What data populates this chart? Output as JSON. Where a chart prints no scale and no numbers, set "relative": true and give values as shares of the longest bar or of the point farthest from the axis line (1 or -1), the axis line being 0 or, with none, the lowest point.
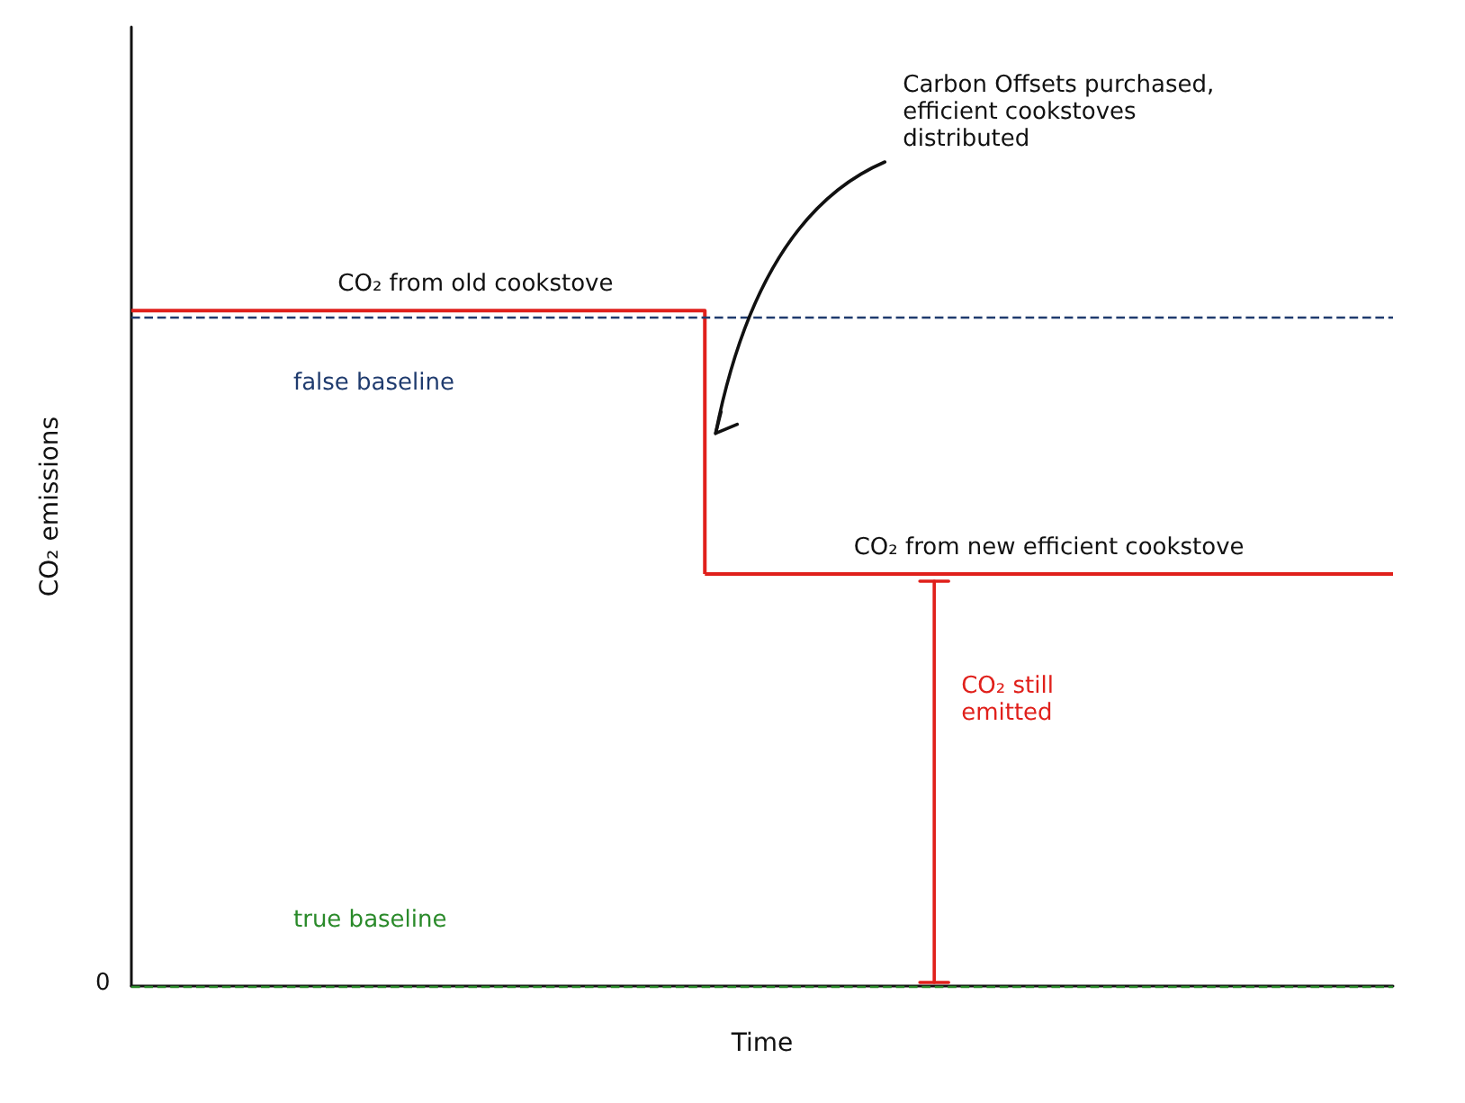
{
  "chart_data": {
    "type": "step",
    "relative": true,
    "xlabel": "Time",
    "ylabel": "CO₂ emissions",
    "categories": [
      null,
      null,
      null,
      null,
      null,
      null,
      null,
      null,
      null,
      null,
      null,
      null
    ],
    "series": [
      {
        "name": "CO₂ from old cookstove",
        "color": "#e0201b",
        "values": [
          1,
          1,
          1,
          1,
          1,
          0.61,
          null,
          null,
          null,
          null,
          null,
          null
        ]
      },
      {
        "name": "CO₂ from new efficient cookstove",
        "color": "#e0201b",
        "values": [
          null,
          null,
          null,
          null,
          null,
          0.61,
          0.61,
          0.61,
          0.61,
          0.61,
          0.61,
          0.61
        ]
      }
    ],
    "ref_lines": [
      {
        "axis": "y",
        "value": 0.99,
        "label": "false baseline",
        "color": "#1f3b6e",
        "line_style": "dashed"
      },
      {
        "axis": "y",
        "value": 0,
        "label": "true baseline",
        "color": "#2a8a2a",
        "line_style": "dashed"
      }
    ],
    "annotations": [
      "0",
      "Carbon Offsets purchased, efficient cookstoves distributed",
      "CO₂ still emitted"
    ],
    "grid": false,
    "legend": false,
    "marker": "none"
  }
}
